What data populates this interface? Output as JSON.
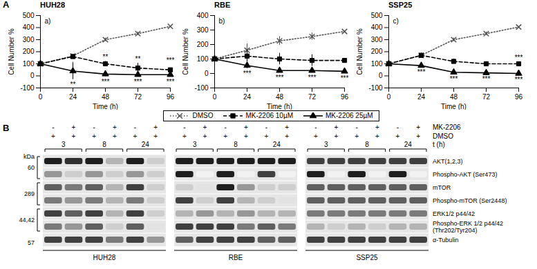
{
  "panel_letters": [
    "A",
    "B"
  ],
  "legend": "bottom",
  "chart_data": [
    {
      "type": "line",
      "panel": "a)",
      "title": "HUH28",
      "x_label": "Time (h)",
      "y_label": "Cell Number %",
      "x": [
        0,
        24,
        48,
        72,
        96
      ],
      "xlim": [
        0,
        96
      ],
      "xticks": [
        0,
        24,
        48,
        72,
        96
      ],
      "ylim": [
        -100,
        500
      ],
      "yticks": [
        -100,
        0,
        100,
        200,
        300,
        400,
        500
      ],
      "grid": false,
      "series": [
        {
          "name": "DMSO",
          "color": "#555555",
          "marker": "x",
          "line_style": "dotted",
          "values": [
            100,
            165,
            300,
            350,
            410
          ],
          "error": [
            0,
            15,
            15,
            15,
            25
          ],
          "significance": [
            null,
            null,
            null,
            null,
            null
          ]
        },
        {
          "name": "MK-2206 10µM",
          "color": "#000000",
          "marker": "square",
          "line_style": "dashed",
          "values": [
            100,
            160,
            100,
            65,
            50
          ],
          "error": [
            0,
            20,
            20,
            40,
            40
          ],
          "significance": [
            null,
            null,
            "**",
            "**",
            "***"
          ]
        },
        {
          "name": "MK-2206 25µM",
          "color": "#000000",
          "marker": "triangle",
          "line_style": "solid",
          "values": [
            100,
            40,
            15,
            10,
            10
          ],
          "error": [
            0,
            70,
            20,
            15,
            15
          ],
          "significance": [
            null,
            "**",
            "***",
            "***",
            "***"
          ]
        }
      ]
    },
    {
      "type": "line",
      "panel": "b)",
      "title": "RBE",
      "x_label": "Time (h)",
      "y_label": "Cell Number %",
      "x": [
        0,
        24,
        48,
        72,
        96
      ],
      "xlim": [
        0,
        96
      ],
      "xticks": [
        0,
        24,
        48,
        72,
        96
      ],
      "ylim": [
        -100,
        400
      ],
      "yticks": [
        -100,
        0,
        100,
        200,
        300,
        400
      ],
      "grid": false,
      "series": [
        {
          "name": "DMSO",
          "color": "#555555",
          "marker": "x",
          "line_style": "dotted",
          "values": [
            100,
            160,
            225,
            255,
            290
          ],
          "error": [
            35,
            45,
            30,
            25,
            15
          ],
          "significance": [
            null,
            null,
            null,
            null,
            null
          ]
        },
        {
          "name": "MK-2206 10µM",
          "color": "#000000",
          "marker": "square",
          "line_style": "dashed",
          "values": [
            100,
            120,
            100,
            90,
            90
          ],
          "error": [
            35,
            40,
            40,
            40,
            55
          ],
          "significance": [
            null,
            null,
            null,
            null,
            null
          ]
        },
        {
          "name": "MK-2206 25µM",
          "color": "#000000",
          "marker": "triangle",
          "line_style": "solid",
          "values": [
            100,
            55,
            20,
            20,
            15
          ],
          "error": [
            35,
            20,
            10,
            10,
            10
          ],
          "significance": [
            null,
            "***",
            "***",
            "***",
            "***"
          ]
        }
      ]
    },
    {
      "type": "line",
      "panel": "c)",
      "title": "SSP25",
      "x_label": "Time (h)",
      "y_label": "Cell Number %",
      "x": [
        0,
        24,
        48,
        72,
        96
      ],
      "xlim": [
        0,
        96
      ],
      "xticks": [
        0,
        24,
        48,
        72,
        96
      ],
      "ylim": [
        -100,
        500
      ],
      "yticks": [
        -100,
        0,
        100,
        200,
        300,
        400,
        500
      ],
      "grid": false,
      "series": [
        {
          "name": "DMSO",
          "color": "#555555",
          "marker": "x",
          "line_style": "dotted",
          "values": [
            100,
            170,
            300,
            350,
            405
          ],
          "error": [
            10,
            20,
            15,
            15,
            15
          ],
          "significance": [
            null,
            null,
            null,
            null,
            null
          ]
        },
        {
          "name": "MK-2206 10µM",
          "color": "#000000",
          "marker": "square",
          "line_style": "dashed",
          "values": [
            100,
            170,
            120,
            100,
            100
          ],
          "error": [
            10,
            20,
            20,
            15,
            15
          ],
          "significance": [
            null,
            null,
            null,
            null,
            "***"
          ]
        },
        {
          "name": "MK-2206 25µM",
          "color": "#000000",
          "marker": "triangle",
          "line_style": "solid",
          "values": [
            100,
            85,
            30,
            25,
            20
          ],
          "error": [
            10,
            10,
            10,
            5,
            5
          ],
          "significance": [
            null,
            "***",
            "***",
            "***",
            "***"
          ]
        }
      ]
    }
  ],
  "blot": {
    "treatments": [
      {
        "name": "MK-2206",
        "values": [
          "-",
          "+",
          "-",
          "+",
          "-",
          "+"
        ]
      },
      {
        "name": "DMSO",
        "values": [
          "+",
          "+",
          "+",
          "+",
          "+",
          "+"
        ]
      }
    ],
    "time_label": "t (h)",
    "times": [
      3,
      8,
      24
    ],
    "kda_title": "kDa",
    "kda_groups": [
      {
        "label": "60",
        "rows": [
          0,
          1
        ]
      },
      {
        "label": "289",
        "rows": [
          2,
          3
        ]
      },
      {
        "label": "44,42",
        "rows": [
          4,
          5
        ]
      },
      {
        "label": "57",
        "rows": [
          6
        ]
      }
    ],
    "proteins": [
      "AKT(1,2,3)",
      "Phospho-AKT (Ser473)",
      "mTOR",
      "Phospho-mTOR (Ser2448)",
      "ERK1/2 p44/42",
      "Phospho-ERK 1/2 p44/42 (Thr202/Tyr204)",
      "α-Tubulin"
    ],
    "cell_lines": [
      {
        "name": "HUH28",
        "intensity": [
          [
            0.9,
            0.85,
            0.9,
            0.4,
            0.9,
            0.3
          ],
          [
            0.5,
            0.3,
            0.5,
            0.3,
            0.5,
            0.3
          ],
          [
            0.7,
            0.6,
            0.7,
            0.4,
            0.8,
            0.3
          ],
          [
            0.6,
            0.5,
            0.6,
            0.4,
            0.6,
            0.3
          ],
          [
            0.8,
            0.7,
            0.8,
            0.4,
            0.8,
            0.3
          ],
          [
            0.6,
            0.5,
            0.7,
            0.3,
            0.7,
            0.2
          ],
          [
            0.8,
            0.8,
            0.8,
            0.6,
            0.8,
            0.5
          ]
        ]
      },
      {
        "name": "RBE",
        "intensity": [
          [
            0.9,
            0.9,
            0.9,
            0.9,
            0.9,
            0.9
          ],
          [
            0.9,
            0.1,
            0.9,
            0.1,
            0.8,
            0.1
          ],
          [
            0.3,
            0.2,
            0.9,
            0.5,
            0.3,
            0.3
          ],
          [
            0.8,
            0.3,
            0.8,
            0.4,
            0.3,
            0.2
          ],
          [
            0.4,
            0.5,
            0.4,
            0.5,
            0.4,
            0.4
          ],
          [
            0.8,
            0.8,
            0.8,
            0.6,
            0.7,
            0.6
          ],
          [
            0.7,
            0.8,
            0.8,
            0.8,
            0.7,
            0.7
          ]
        ]
      },
      {
        "name": "SSP25",
        "intensity": [
          [
            0.8,
            0.8,
            0.8,
            0.8,
            0.8,
            0.8
          ],
          [
            0.9,
            0.1,
            0.9,
            0.1,
            0.9,
            0.1
          ],
          [
            0.7,
            0.7,
            0.7,
            0.7,
            0.7,
            0.7
          ],
          [
            0.7,
            0.7,
            0.7,
            0.7,
            0.7,
            0.7
          ],
          [
            0.6,
            0.6,
            0.6,
            0.6,
            0.6,
            0.6
          ],
          [
            0.4,
            0.3,
            0.4,
            0.3,
            0.4,
            0.4
          ],
          [
            0.8,
            0.8,
            0.8,
            0.8,
            0.8,
            0.8
          ]
        ]
      }
    ]
  }
}
